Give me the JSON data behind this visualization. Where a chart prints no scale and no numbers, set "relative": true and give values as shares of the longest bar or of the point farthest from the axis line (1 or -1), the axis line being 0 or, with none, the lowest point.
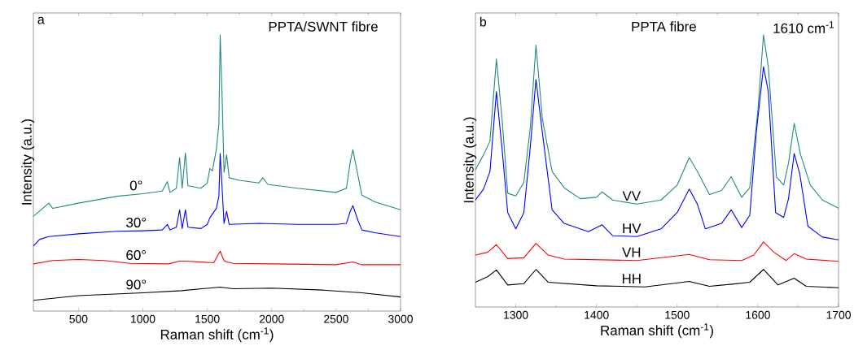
{
  "chart_data": [
    {
      "type": "line",
      "relative": true,
      "xlabel": "Raman shift (cm$^{-1}$)",
      "ylabel": "Intensity (a.u.)",
      "xlim": [
        150,
        3000
      ],
      "xticks": [
        500,
        1000,
        1500,
        2000,
        2500,
        3000
      ],
      "series": [
        {
          "name": "0°",
          "color": "#1f8a82",
          "x": [
            150,
            270,
            300,
            500,
            800,
            1000,
            1150,
            1190,
            1210,
            1260,
            1285,
            1305,
            1330,
            1350,
            1450,
            1500,
            1520,
            1540,
            1570,
            1590,
            1600,
            1615,
            1630,
            1650,
            1670,
            1750,
            1900,
            1930,
            1970,
            2200,
            2500,
            2580,
            2610,
            2630,
            2660,
            2700,
            2800,
            3000
          ],
          "values": [
            0.343,
            0.391,
            0.372,
            0.391,
            0.416,
            0.425,
            0.435,
            0.469,
            0.43,
            0.445,
            0.556,
            0.445,
            0.573,
            0.454,
            0.445,
            0.464,
            0.517,
            0.508,
            0.585,
            0.678,
            1.0,
            0.775,
            0.503,
            0.566,
            0.483,
            0.474,
            0.464,
            0.483,
            0.459,
            0.445,
            0.43,
            0.445,
            0.542,
            0.585,
            0.513,
            0.42,
            0.396,
            0.367
          ]
        },
        {
          "name": "30°",
          "color": "#0000ff",
          "x": [
            150,
            200,
            270,
            500,
            800,
            1000,
            1150,
            1190,
            1210,
            1260,
            1285,
            1305,
            1330,
            1350,
            1450,
            1500,
            1520,
            1570,
            1590,
            1600,
            1615,
            1630,
            1650,
            1670,
            1900,
            2200,
            2500,
            2580,
            2610,
            2630,
            2670,
            2700,
            2800,
            3000
          ],
          "values": [
            0.236,
            0.26,
            0.27,
            0.28,
            0.289,
            0.291,
            0.294,
            0.314,
            0.294,
            0.304,
            0.367,
            0.299,
            0.367,
            0.304,
            0.299,
            0.314,
            0.338,
            0.372,
            0.416,
            0.571,
            0.445,
            0.318,
            0.362,
            0.314,
            0.318,
            0.314,
            0.314,
            0.318,
            0.362,
            0.382,
            0.328,
            0.294,
            0.284,
            0.27
          ]
        },
        {
          "name": "60°",
          "color": "#ff0000",
          "x": [
            150,
            300,
            500,
            700,
            900,
            1200,
            1285,
            1330,
            1550,
            1600,
            1630,
            1650,
            1700,
            2000,
            2500,
            2630,
            2700,
            3000
          ],
          "values": [
            0.171,
            0.183,
            0.187,
            0.183,
            0.173,
            0.171,
            0.181,
            0.181,
            0.175,
            0.217,
            0.183,
            0.178,
            0.173,
            0.171,
            0.168,
            0.178,
            0.168,
            0.168
          ]
        },
        {
          "name": "90°",
          "color": "#000000",
          "x": [
            150,
            500,
            1000,
            1300,
            1600,
            1700,
            2000,
            2400,
            2700,
            3000
          ],
          "values": [
            0.039,
            0.056,
            0.066,
            0.074,
            0.087,
            0.081,
            0.083,
            0.076,
            0.066,
            0.051
          ]
        }
      ],
      "annotations": [
        "a",
        "PPTA/SWNT fibre"
      ]
    },
    {
      "type": "line",
      "relative": true,
      "xlabel": "Raman shift (cm$^{-1}$)",
      "ylabel": "Intensity (a.u.)",
      "xlim": [
        1250,
        1700
      ],
      "xticks": [
        1300,
        1400,
        1500,
        1600,
        1700
      ],
      "series": [
        {
          "name": "VV",
          "color": "#1f8a82",
          "x": [
            1250,
            1260,
            1268,
            1276,
            1283,
            1290,
            1300,
            1310,
            1318,
            1325,
            1333,
            1345,
            1360,
            1380,
            1400,
            1407,
            1420,
            1450,
            1480,
            1500,
            1515,
            1525,
            1540,
            1555,
            1567,
            1580,
            1590,
            1600,
            1607,
            1613,
            1623,
            1632,
            1638,
            1645,
            1653,
            1665,
            1680,
            1700
          ],
          "values": [
            0.504,
            0.559,
            0.609,
            0.911,
            0.69,
            0.418,
            0.408,
            0.458,
            0.66,
            0.962,
            0.69,
            0.498,
            0.438,
            0.398,
            0.403,
            0.423,
            0.393,
            0.378,
            0.393,
            0.448,
            0.549,
            0.498,
            0.413,
            0.428,
            0.478,
            0.403,
            0.438,
            0.72,
            1.0,
            0.881,
            0.478,
            0.448,
            0.529,
            0.675,
            0.559,
            0.448,
            0.393,
            0.363
          ]
        },
        {
          "name": "HV",
          "color": "#0000ff",
          "x": [
            1250,
            1260,
            1268,
            1276,
            1283,
            1290,
            1300,
            1310,
            1318,
            1325,
            1333,
            1345,
            1360,
            1390,
            1407,
            1420,
            1450,
            1480,
            1500,
            1515,
            1525,
            1535,
            1555,
            1567,
            1580,
            1590,
            1598,
            1607,
            1613,
            1622,
            1632,
            1638,
            1645,
            1652,
            1662,
            1680,
            1700
          ],
          "values": [
            0.393,
            0.433,
            0.498,
            0.791,
            0.58,
            0.347,
            0.287,
            0.347,
            0.589,
            0.836,
            0.639,
            0.357,
            0.307,
            0.277,
            0.302,
            0.262,
            0.259,
            0.287,
            0.347,
            0.433,
            0.378,
            0.287,
            0.307,
            0.357,
            0.292,
            0.337,
            0.639,
            0.883,
            0.791,
            0.347,
            0.329,
            0.398,
            0.564,
            0.488,
            0.297,
            0.257,
            0.247
          ]
        },
        {
          "name": "VH",
          "color": "#ff0000",
          "x": [
            1250,
            1265,
            1276,
            1290,
            1310,
            1325,
            1340,
            1360,
            1450,
            1515,
            1540,
            1580,
            1595,
            1607,
            1620,
            1635,
            1645,
            1660,
            1700
          ],
          "values": [
            0.191,
            0.201,
            0.229,
            0.178,
            0.181,
            0.234,
            0.191,
            0.176,
            0.171,
            0.193,
            0.174,
            0.171,
            0.191,
            0.239,
            0.201,
            0.171,
            0.196,
            0.176,
            0.168
          ]
        },
        {
          "name": "HH",
          "color": "#000000",
          "x": [
            1250,
            1265,
            1276,
            1290,
            1310,
            1325,
            1340,
            1400,
            1460,
            1515,
            1540,
            1568,
            1590,
            1607,
            1625,
            1645,
            1660,
            1700
          ],
          "values": [
            0.091,
            0.111,
            0.136,
            0.081,
            0.086,
            0.138,
            0.091,
            0.078,
            0.074,
            0.094,
            0.076,
            0.084,
            0.091,
            0.138,
            0.081,
            0.106,
            0.076,
            0.071
          ]
        }
      ],
      "annotations": [
        "b",
        "PPTA fibre",
        "1610 cm$^{-1}$"
      ]
    }
  ]
}
